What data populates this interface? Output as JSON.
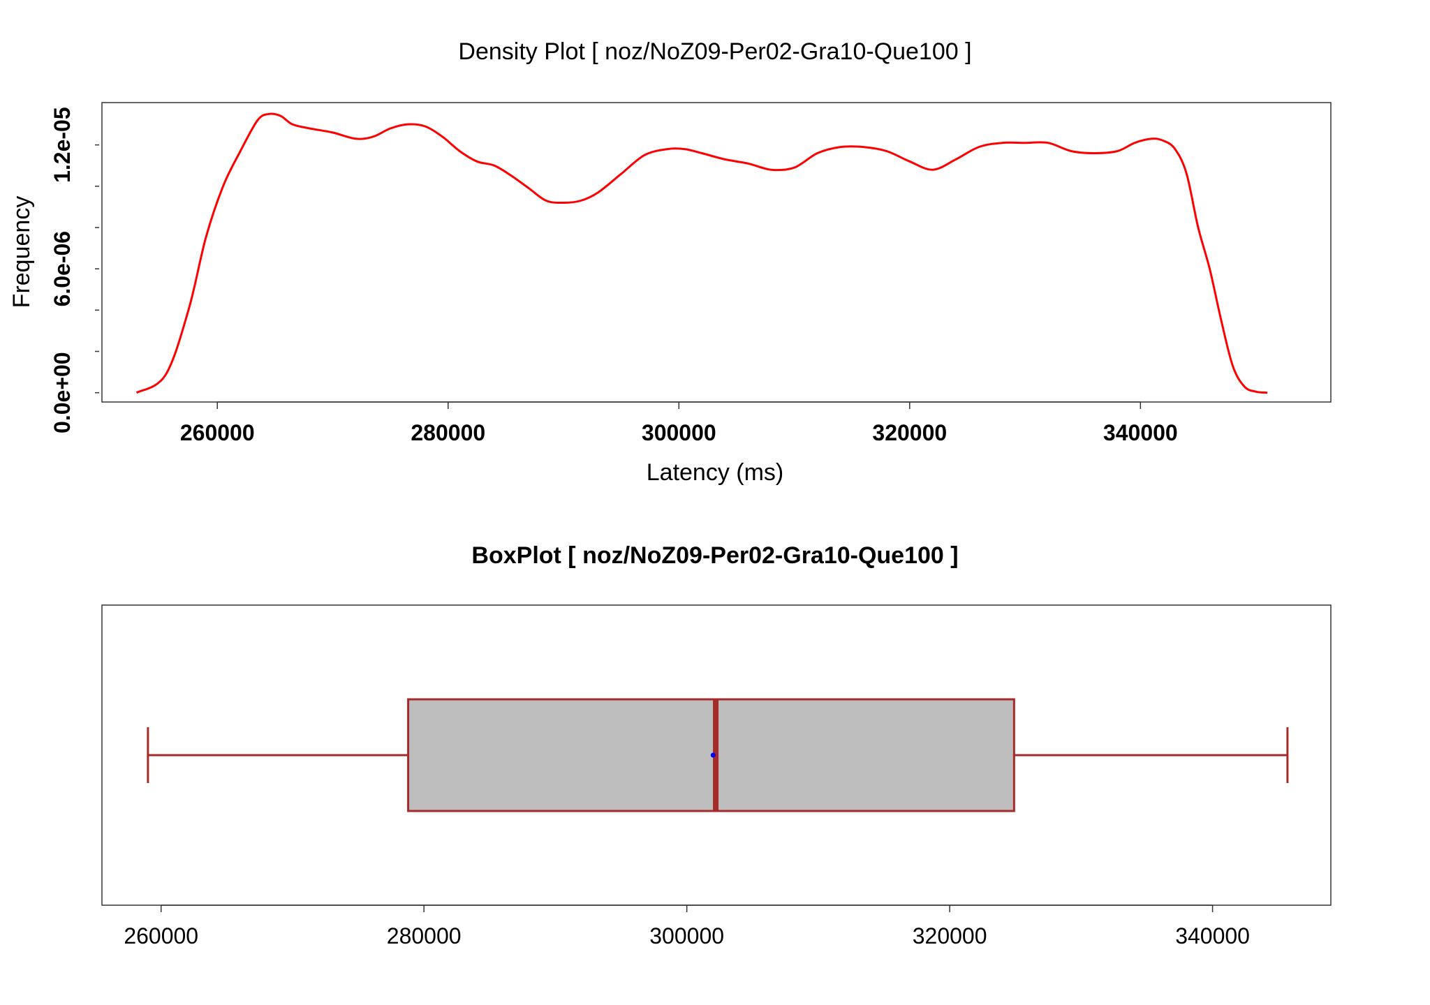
{
  "chart_data": [
    {
      "type": "line",
      "title": "Density Plot [ noz/NoZ09-Per02-Gra10-Que100 ]",
      "xlabel": "Latency (ms)",
      "ylabel": "Frequency",
      "xlim": [
        250000,
        356500
      ],
      "ylim": [
        -4.5e-07,
        1.405e-05
      ],
      "x_ticks": [
        {
          "value": 260000,
          "label": "260000"
        },
        {
          "value": 280000,
          "label": "280000"
        },
        {
          "value": 300000,
          "label": "300000"
        },
        {
          "value": 320000,
          "label": "320000"
        },
        {
          "value": 340000,
          "label": "340000"
        }
      ],
      "y_ticks": [
        {
          "value": 0,
          "label": "0.0e+00"
        },
        {
          "value": 6e-06,
          "label": "6.0e-06"
        },
        {
          "value": 1.2e-05,
          "label": "1.2e-05"
        }
      ],
      "y_minor_ticks": [
        0,
        2e-06,
        4e-06,
        6e-06,
        8e-06,
        1e-05,
        1.2e-05
      ],
      "line_color": "#ff0000",
      "series": [
        {
          "x": [
            253000,
            255500,
            257500,
            259000,
            260500,
            262000,
            263500,
            264500,
            265500,
            266500,
            268000,
            270000,
            272000,
            273500,
            275000,
            276500,
            278000,
            279500,
            281000,
            282500,
            284000,
            285500,
            287000,
            288500,
            290000,
            291500,
            293000,
            295000,
            297000,
            299000,
            300500,
            302000,
            304000,
            306000,
            308000,
            310000,
            312000,
            314000,
            316000,
            318000,
            320000,
            322000,
            324000,
            326000,
            328000,
            330000,
            332000,
            334000,
            336000,
            338000,
            339500,
            341000,
            342000,
            343000,
            344000,
            345000,
            346000,
            347000,
            348000,
            349000,
            350000,
            351000
          ],
          "y": [
            0.0,
            8.5e-07,
            4e-06,
            7.5e-06,
            1e-05,
            1.17e-05,
            1.32e-05,
            1.35e-05,
            1.34e-05,
            1.3e-05,
            1.28e-05,
            1.26e-05,
            1.23e-05,
            1.24e-05,
            1.28e-05,
            1.3e-05,
            1.29e-05,
            1.24e-05,
            1.17e-05,
            1.12e-05,
            1.1e-05,
            1.05e-05,
            9.9e-06,
            9.3e-06,
            9.2e-06,
            9.3e-06,
            9.7e-06,
            1.06e-05,
            1.15e-05,
            1.18e-05,
            1.18e-05,
            1.16e-05,
            1.13e-05,
            1.11e-05,
            1.08e-05,
            1.09e-05,
            1.16e-05,
            1.19e-05,
            1.19e-05,
            1.17e-05,
            1.12e-05,
            1.08e-05,
            1.13e-05,
            1.19e-05,
            1.21e-05,
            1.21e-05,
            1.21e-05,
            1.17e-05,
            1.16e-05,
            1.17e-05,
            1.21e-05,
            1.23e-05,
            1.22e-05,
            1.18e-05,
            1.06e-05,
            8e-06,
            6e-06,
            3.5e-06,
            1.3e-06,
            3e-07,
            5e-08,
            0.0
          ]
        }
      ]
    },
    {
      "type": "box",
      "title": "BoxPlot [ noz/NoZ09-Per02-Gra10-Que100 ]",
      "xlim": [
        255500,
        349000
      ],
      "x_ticks": [
        {
          "value": 260000,
          "label": "260000"
        },
        {
          "value": 280000,
          "label": "280000"
        },
        {
          "value": 300000,
          "label": "300000"
        },
        {
          "value": 320000,
          "label": "320000"
        },
        {
          "value": 340000,
          "label": "340000"
        }
      ],
      "whisker_low": 259000,
      "q1": 278800,
      "median": 302200,
      "mean": 302000,
      "q3": 324900,
      "whisker_high": 345700,
      "box_fill": "#bebebe",
      "border_color": "#a52a2a",
      "mean_color": "#0000ff"
    }
  ]
}
